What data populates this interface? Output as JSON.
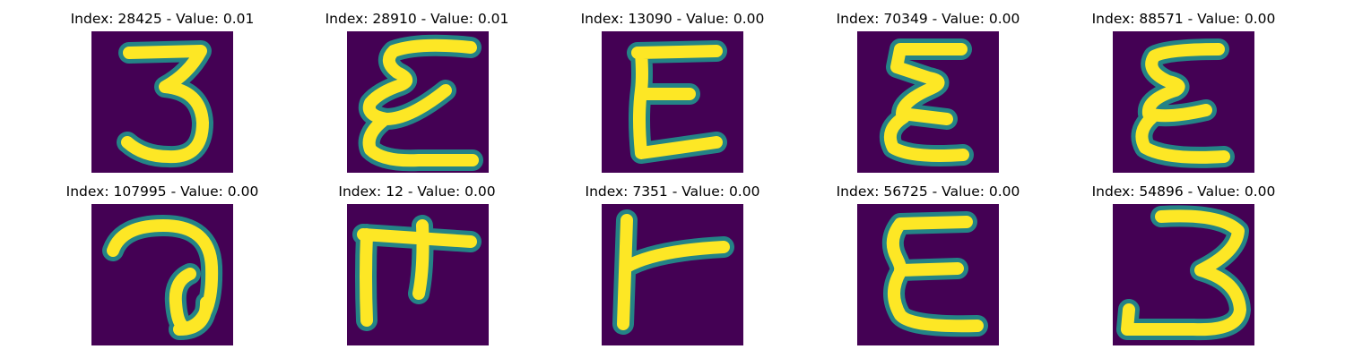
{
  "palette": {
    "background": "#440154",
    "mid": "#21918c",
    "edge": "#5ec962",
    "stroke": "#fde725"
  },
  "panels": [
    {
      "title": "Index: 28425 - Value: 0.01",
      "glyph": "3"
    },
    {
      "title": "Index: 28910 - Value: 0.01",
      "glyph": "ε"
    },
    {
      "title": "Index: 13090 - Value: 0.00",
      "glyph": "E"
    },
    {
      "title": "Index: 70349 - Value: 0.00",
      "glyph": "ε"
    },
    {
      "title": "Index: 88571 - Value: 0.00",
      "glyph": "ε"
    },
    {
      "title": "Index: 107995 - Value: 0.00",
      "glyph": "ə"
    },
    {
      "title": "Index: 12 - Value: 0.00",
      "glyph": "π"
    },
    {
      "title": "Index: 7351 - Value: 0.00",
      "glyph": "r"
    },
    {
      "title": "Index: 56725 - Value: 0.00",
      "glyph": "E"
    },
    {
      "title": "Index: 54896 - Value: 0.00",
      "glyph": "3"
    }
  ]
}
